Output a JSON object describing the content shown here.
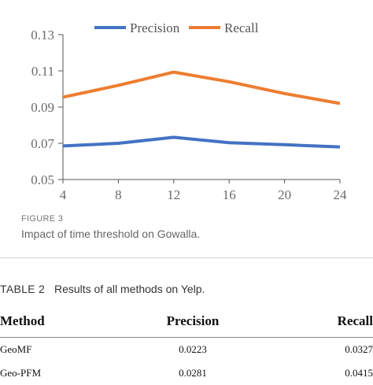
{
  "chart_data": {
    "type": "line",
    "x": [
      4,
      8,
      12,
      16,
      20,
      24
    ],
    "xticks": [
      "4",
      "8",
      "12",
      "16",
      "20",
      "24"
    ],
    "yticks": [
      "0.05",
      "0.07",
      "0.09",
      "0.11",
      "0.13"
    ],
    "ylim": [
      0.05,
      0.13
    ],
    "xlim": [
      4,
      24
    ],
    "legend_position": "top",
    "grid": false,
    "series": [
      {
        "name": "Precision",
        "color": "#4472c4",
        "values": [
          0.0685,
          0.07,
          0.0733,
          0.0703,
          0.0692,
          0.068
        ]
      },
      {
        "name": "Recall",
        "color": "#ed7d31",
        "values": [
          0.0955,
          0.102,
          0.1093,
          0.104,
          0.0975,
          0.092
        ]
      }
    ]
  },
  "figure": {
    "label": "FIGURE 3",
    "caption": "Impact of time threshold on Gowalla."
  },
  "table": {
    "label": "TABLE 2",
    "title": "Results of all methods on Yelp.",
    "headers": [
      "Method",
      "Precision",
      "Recall"
    ],
    "rows": [
      [
        "GeoMF",
        "0.0223",
        "0.0327"
      ],
      [
        "Geo-PFM",
        "0.0281",
        "0.0415"
      ]
    ]
  }
}
